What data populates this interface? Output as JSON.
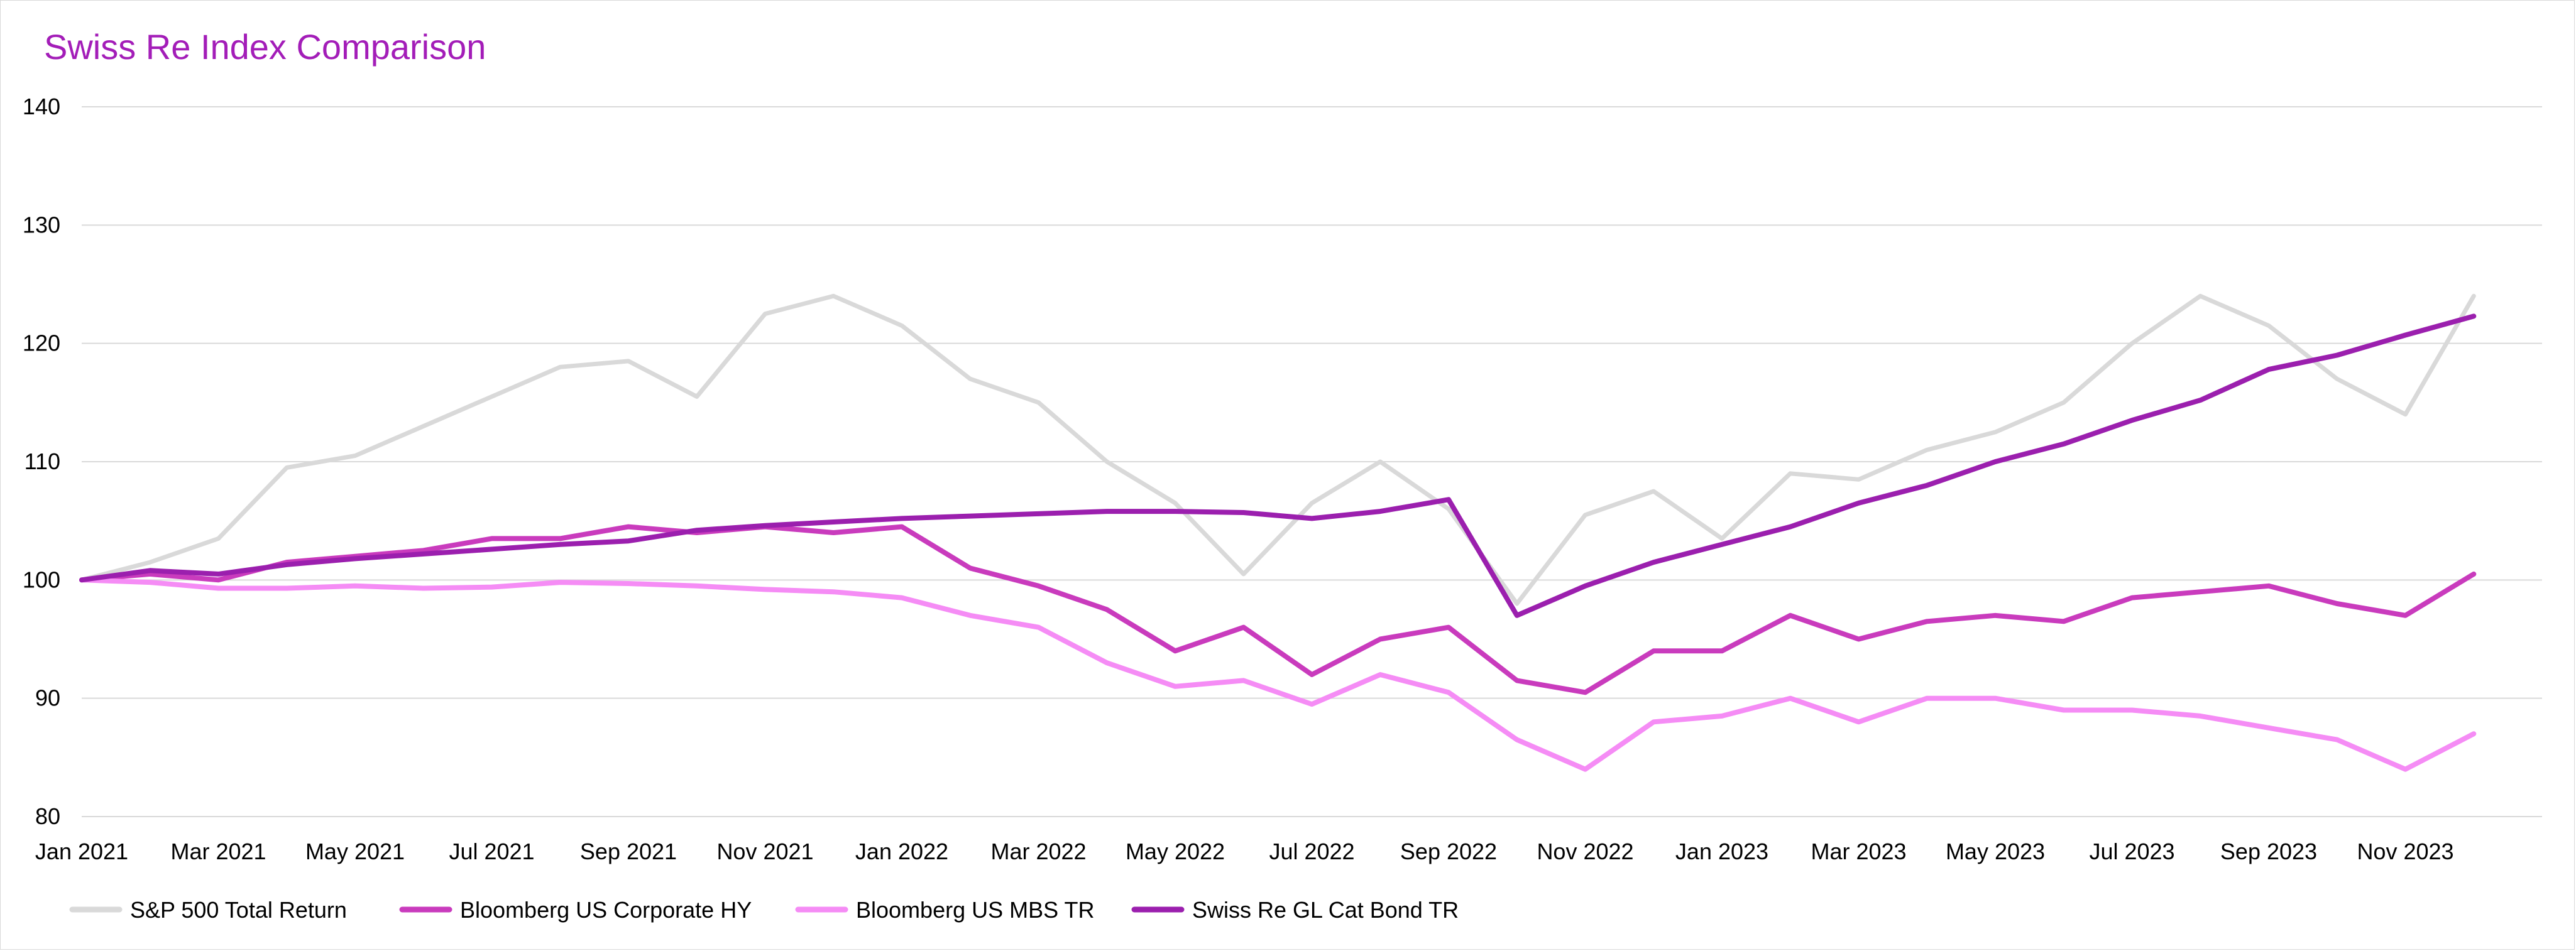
{
  "chart_data": {
    "type": "line",
    "title": "Swiss Re Index Comparison",
    "xlabel": "",
    "ylabel": "",
    "ylim": [
      80,
      140
    ],
    "yticks": [
      80,
      90,
      100,
      110,
      120,
      130,
      140
    ],
    "xlim": [
      "2021-01",
      "2024-01"
    ],
    "xticks": [
      {
        "value": "2021-01",
        "label": "Jan 2021"
      },
      {
        "value": "2021-03",
        "label": "Mar 2021"
      },
      {
        "value": "2021-05",
        "label": "May 2021"
      },
      {
        "value": "2021-07",
        "label": "Jul 2021"
      },
      {
        "value": "2021-09",
        "label": "Sep 2021"
      },
      {
        "value": "2021-11",
        "label": "Nov 2021"
      },
      {
        "value": "2022-01",
        "label": "Jan 2022"
      },
      {
        "value": "2022-03",
        "label": "Mar 2022"
      },
      {
        "value": "2022-05",
        "label": "May 2022"
      },
      {
        "value": "2022-07",
        "label": "Jul 2022"
      },
      {
        "value": "2022-09",
        "label": "Sep 2022"
      },
      {
        "value": "2022-11",
        "label": "Nov 2022"
      },
      {
        "value": "2023-01",
        "label": "Jan 2023"
      },
      {
        "value": "2023-03",
        "label": "Mar 2023"
      },
      {
        "value": "2023-05",
        "label": "May 2023"
      },
      {
        "value": "2023-07",
        "label": "Jul 2023"
      },
      {
        "value": "2023-09",
        "label": "Sep 2023"
      },
      {
        "value": "2023-11",
        "label": "Nov 2023"
      }
    ],
    "grid": true,
    "legend_position": "bottom",
    "x": [
      "2021-01",
      "2021-02",
      "2021-03",
      "2021-04",
      "2021-05",
      "2021-06",
      "2021-07",
      "2021-08",
      "2021-09",
      "2021-10",
      "2021-11",
      "2021-12",
      "2022-01",
      "2022-02",
      "2022-03",
      "2022-04",
      "2022-05",
      "2022-06",
      "2022-07",
      "2022-08",
      "2022-09",
      "2022-10",
      "2022-11",
      "2022-12",
      "2023-01",
      "2023-02",
      "2023-03",
      "2023-04",
      "2023-05",
      "2023-06",
      "2023-07",
      "2023-08",
      "2023-09",
      "2023-10",
      "2023-11",
      "2023-12"
    ],
    "series": [
      {
        "name": "S&P 500 Total Return",
        "color": "#d9d9d9",
        "values": [
          100,
          101.5,
          103.5,
          109.5,
          110.5,
          113,
          115.5,
          118,
          118.5,
          115.5,
          122.5,
          124,
          121.5,
          117,
          115,
          110,
          106.5,
          100.5,
          106.5,
          110,
          106,
          98,
          105.5,
          107.5,
          103.5,
          109,
          108.5,
          111,
          112.5,
          115,
          120,
          124,
          121.5,
          117,
          114,
          124
        ]
      },
      {
        "name": "Bloomberg US Corporate HY",
        "color": "#c93bbd",
        "values": [
          100,
          100.5,
          100,
          101.5,
          102,
          102.5,
          103.5,
          103.5,
          104.5,
          104,
          104.5,
          104,
          104.5,
          101,
          99.5,
          97.5,
          94,
          96,
          92,
          95,
          96,
          91.5,
          90.5,
          94,
          94,
          97,
          95,
          96.5,
          97,
          96.5,
          98.5,
          99,
          99.5,
          98,
          97,
          100.5
        ]
      },
      {
        "name": "Bloomberg US MBS TR",
        "color": "#f58cf5",
        "values": [
          100,
          99.8,
          99.3,
          99.3,
          99.5,
          99.3,
          99.4,
          99.8,
          99.7,
          99.5,
          99.2,
          99,
          98.5,
          97,
          96,
          93,
          91,
          91.5,
          89.5,
          92,
          90.5,
          86.5,
          84,
          88,
          88.5,
          90,
          88,
          90,
          90,
          89,
          89,
          88.5,
          87.5,
          86.5,
          84,
          87
        ]
      },
      {
        "name": "Swiss Re GL Cat Bond TR",
        "color": "#9b1fae",
        "values": [
          100,
          100.8,
          100.5,
          101.3,
          101.8,
          102.2,
          102.6,
          103,
          103.3,
          104.2,
          104.6,
          104.9,
          105.2,
          105.4,
          105.6,
          105.8,
          105.8,
          105.7,
          105.2,
          105.8,
          106.8,
          97,
          99.5,
          101.5,
          103,
          104.5,
          106.5,
          108,
          110,
          111.5,
          113.5,
          115.2,
          117.8,
          119,
          120.7,
          122.3
        ]
      }
    ]
  }
}
